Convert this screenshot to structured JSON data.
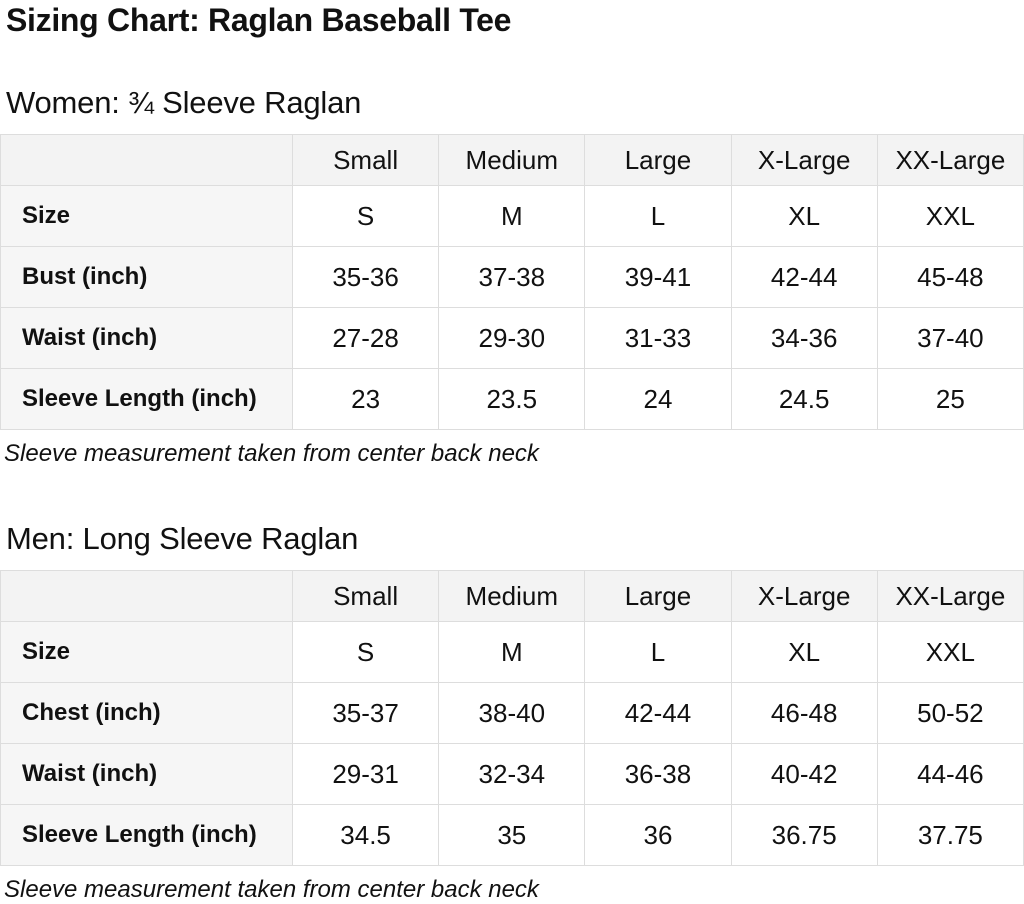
{
  "page_title": "Sizing Chart: Raglan Baseball Tee",
  "sections": [
    {
      "heading": "Women: ¾ Sleeve Raglan",
      "note": "Sleeve measurement taken from center back neck",
      "table": {
        "column_headers": [
          "",
          "Small",
          "Medium",
          "Large",
          "X-Large",
          "XX-Large"
        ],
        "rows": [
          {
            "label": "Size",
            "values": [
              "S",
              "M",
              "L",
              "XL",
              "XXL"
            ]
          },
          {
            "label": "Bust (inch)",
            "values": [
              "35-36",
              "37-38",
              "39-41",
              "42-44",
              "45-48"
            ]
          },
          {
            "label": "Waist (inch)",
            "values": [
              "27-28",
              "29-30",
              "31-33",
              "34-36",
              "37-40"
            ]
          },
          {
            "label": "Sleeve Length (inch)",
            "values": [
              "23",
              "23.5",
              "24",
              "24.5",
              "25"
            ]
          }
        ]
      }
    },
    {
      "heading": "Men: Long Sleeve Raglan",
      "note": "Sleeve measurement taken from center back neck",
      "table": {
        "column_headers": [
          "",
          "Small",
          "Medium",
          "Large",
          "X-Large",
          "XX-Large"
        ],
        "rows": [
          {
            "label": "Size",
            "values": [
              "S",
              "M",
              "L",
              "XL",
              "XXL"
            ]
          },
          {
            "label": "Chest (inch)",
            "values": [
              "35-37",
              "38-40",
              "42-44",
              "46-48",
              "50-52"
            ]
          },
          {
            "label": "Waist (inch)",
            "values": [
              "29-31",
              "32-34",
              "36-38",
              "40-42",
              "44-46"
            ]
          },
          {
            "label": "Sleeve Length (inch)",
            "values": [
              "34.5",
              "35",
              "36",
              "36.75",
              "37.75"
            ]
          }
        ]
      }
    }
  ]
}
